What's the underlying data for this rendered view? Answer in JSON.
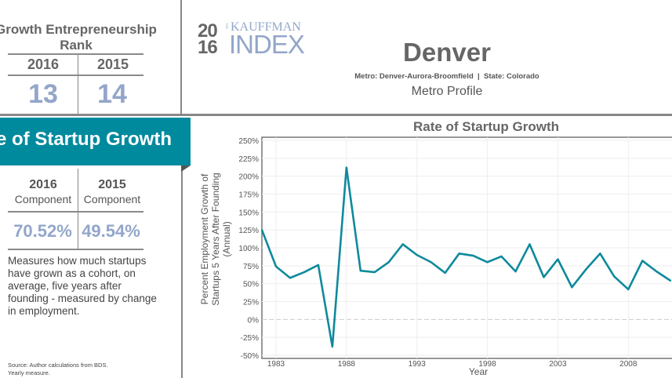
{
  "rank": {
    "title": "Growth Entrepreneurship Rank",
    "years": [
      "2016",
      "2015"
    ],
    "values": [
      "13",
      "14"
    ]
  },
  "logo": {
    "year_top": "20",
    "year_bottom": "16",
    "the": "THE",
    "brand": "KAUFFMAN",
    "index": "INDEX"
  },
  "header": {
    "city": "Denver",
    "metro_label": "Metro: Denver-Aurora-Broomfield",
    "state_label": "State: Colorado",
    "separator": "|",
    "profile": "Metro Profile"
  },
  "component": {
    "banner": "Rate of Startup Growth",
    "years": [
      "2016",
      "2015"
    ],
    "sub": "Component",
    "values": [
      "70.52%",
      "49.54%"
    ],
    "description": "Measures how much startups have grown as a cohort, on average, five years after founding - measured by change in employment.",
    "source": "Source: Author calculations from BDS.",
    "source2": "Yearly measure."
  },
  "colors": {
    "teal": "#008a9e",
    "rank_blue": "#93a6c9",
    "line": "#0e8a9c"
  },
  "chart_data": {
    "type": "line",
    "title": "Rate of Startup Growth",
    "xlabel": "Year",
    "ylabel": "Percent Employment Growth of Startups 5 Years After Founding (Annual)",
    "ylabel_lines": [
      "Percent Employment Growth of",
      "Startups 5 Years After Founding",
      "(Annual)"
    ],
    "ylim": [
      -50,
      250
    ],
    "yticks": [
      -50,
      -25,
      0,
      25,
      50,
      75,
      100,
      125,
      150,
      175,
      200,
      225,
      250
    ],
    "xlim": [
      1982,
      2011.1
    ],
    "xticks": [
      1983,
      1988,
      1993,
      1998,
      2003,
      2008
    ],
    "grid": true,
    "x": [
      1982,
      1983,
      1984,
      1985,
      1986,
      1987,
      1988,
      1989,
      1990,
      1991,
      1992,
      1993,
      1994,
      1995,
      1996,
      1997,
      1998,
      1999,
      2000,
      2001,
      2002,
      2003,
      2004,
      2005,
      2006,
      2007,
      2008,
      2009,
      2010,
      2011
    ],
    "y": [
      125,
      74,
      58,
      66,
      76,
      -38,
      212,
      68,
      66,
      80,
      105,
      90,
      80,
      65,
      92,
      89,
      80,
      88,
      67,
      105,
      59,
      84,
      45,
      70,
      92,
      60,
      42,
      82,
      67,
      54
    ]
  }
}
